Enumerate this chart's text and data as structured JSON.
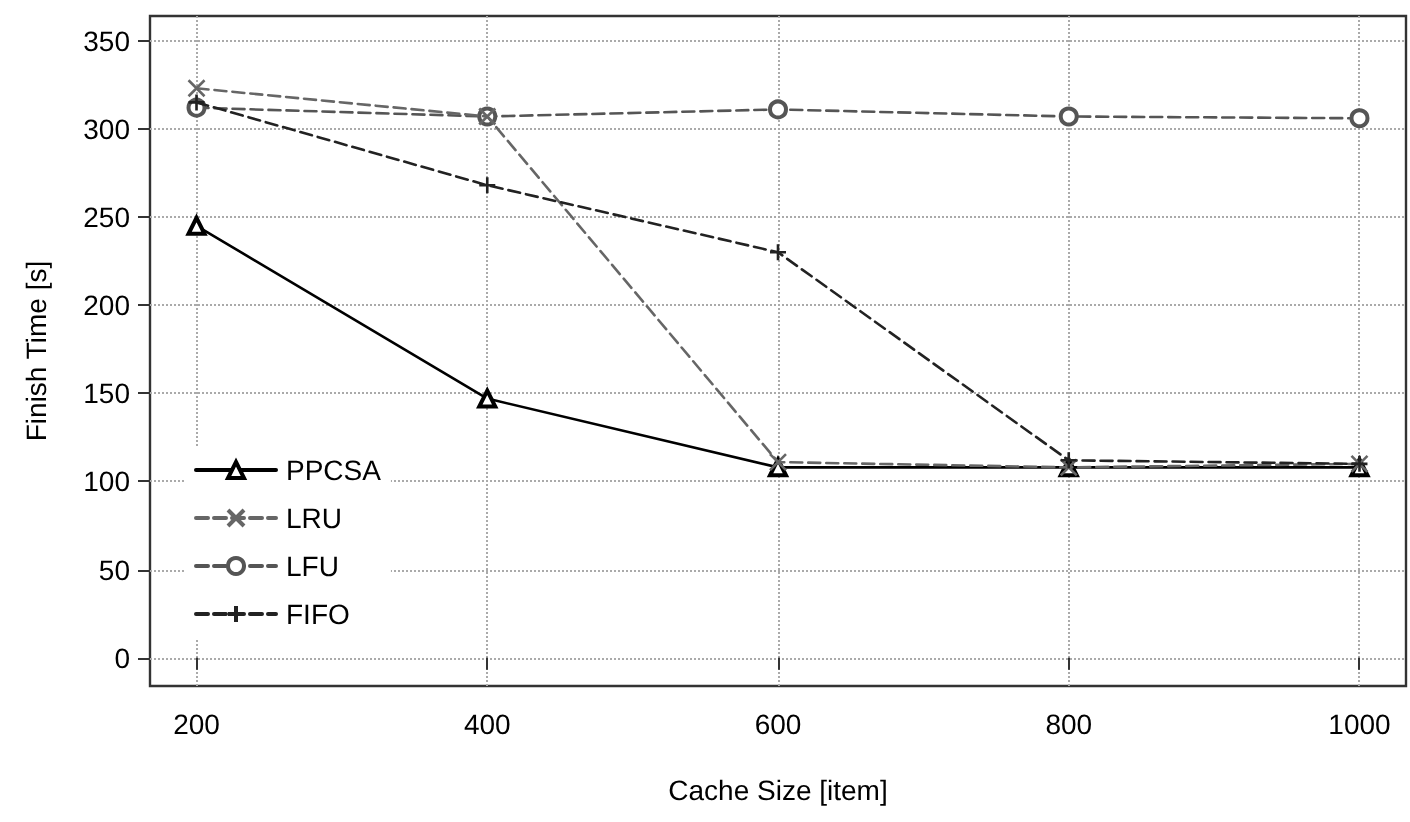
{
  "chart_data": {
    "type": "line",
    "xlabel": "Cache Size [item]",
    "ylabel": "Finish Time [s]",
    "x": [
      200,
      400,
      600,
      800,
      1000
    ],
    "series": [
      {
        "name": "PPCSA",
        "color": "#000000",
        "marker": "triangle",
        "line_style": "solid",
        "values": [
          245,
          147,
          108,
          108,
          108
        ]
      },
      {
        "name": "LRU",
        "color": "#666666",
        "marker": "cross",
        "line_style": "dashed",
        "values": [
          323,
          307,
          111,
          108,
          110
        ]
      },
      {
        "name": "LFU",
        "color": "#555555",
        "marker": "circle",
        "line_style": "dashed",
        "values": [
          312,
          307,
          311,
          307,
          306
        ]
      },
      {
        "name": "FIFO",
        "color": "#222222",
        "marker": "plus",
        "line_style": "dashed",
        "values": [
          315,
          268,
          230,
          112,
          110
        ]
      }
    ],
    "xlim": [
      168,
      1032
    ],
    "xticks": [
      200,
      400,
      600,
      800,
      1000
    ],
    "ylim": [
      -16,
      364
    ],
    "yticks": [
      0,
      50,
      100,
      150,
      200,
      250,
      300,
      350
    ],
    "grid": true,
    "legend": "bottom left"
  }
}
